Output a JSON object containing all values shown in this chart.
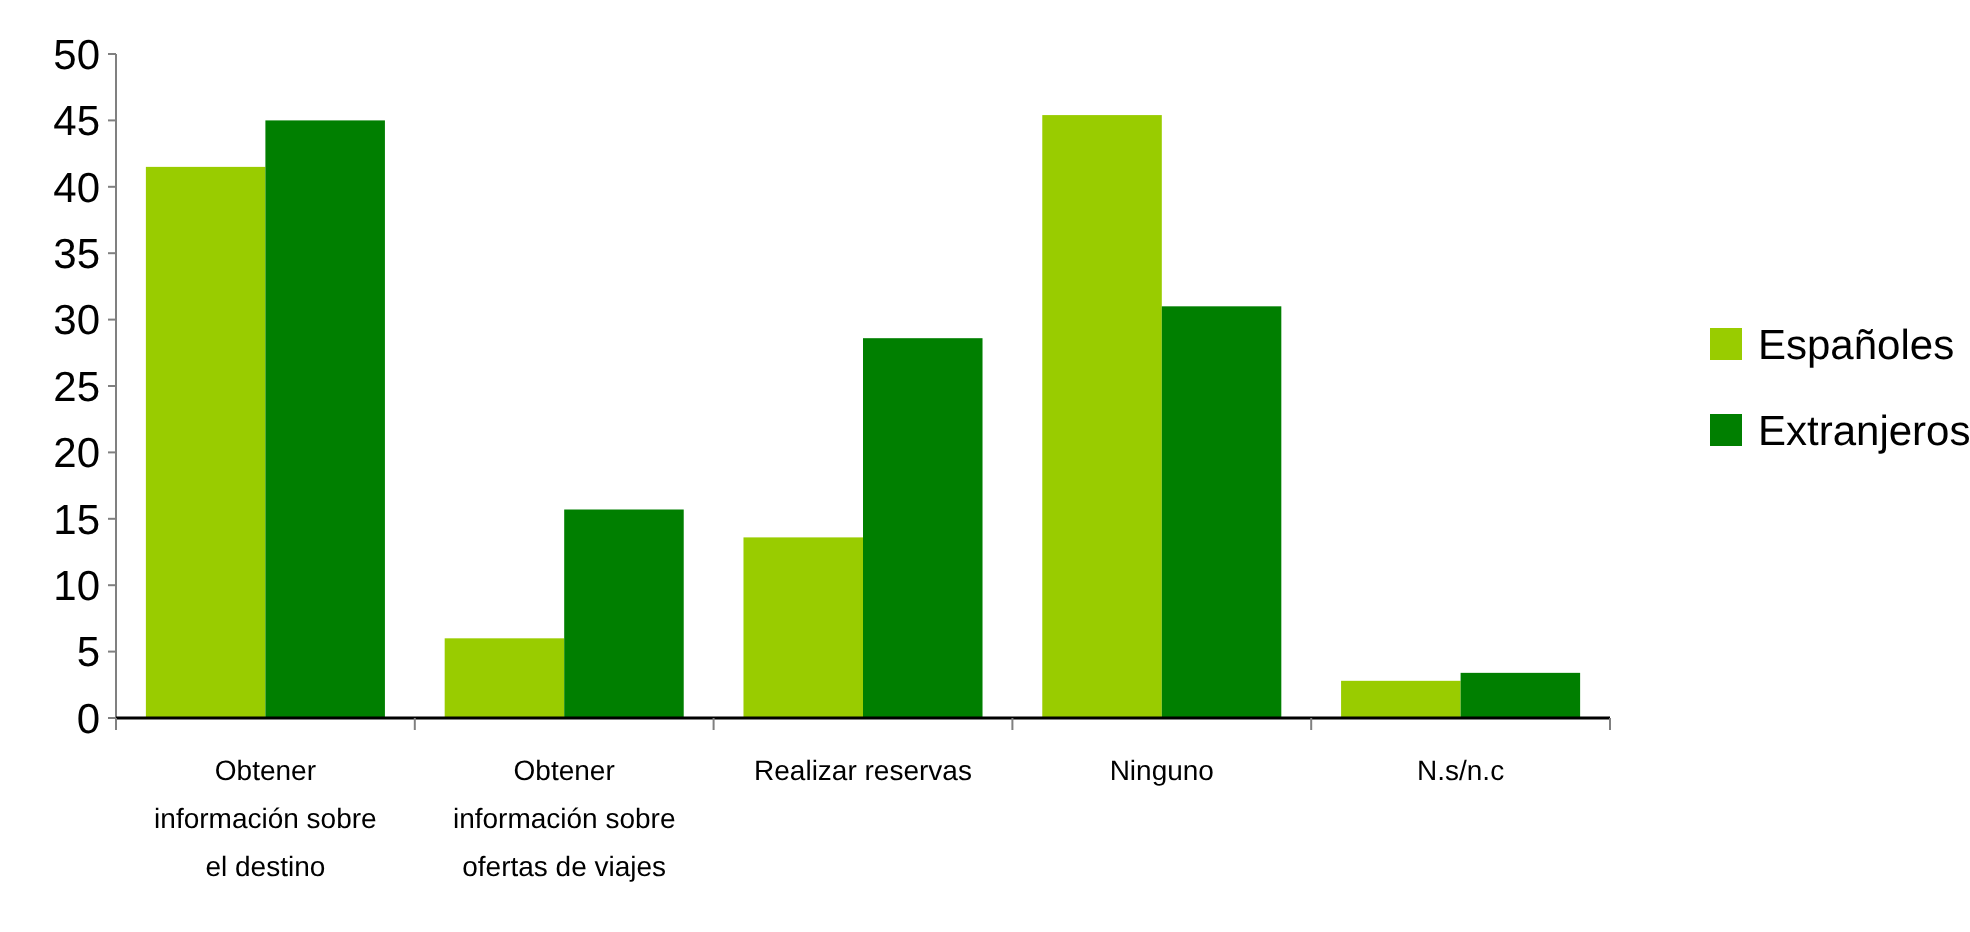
{
  "chart_data": {
    "type": "bar",
    "categories": [
      "Obtener información sobre el destino",
      "Obtener información sobre ofertas de viajes",
      "Realizar reservas",
      "Ninguno",
      "N.s/n.c"
    ],
    "series": [
      {
        "name": "Españoles",
        "color": "#99cc00",
        "values": [
          41.5,
          6,
          13.6,
          45.4,
          2.8
        ]
      },
      {
        "name": "Extranjeros",
        "color": "#007f00",
        "values": [
          45,
          15.7,
          28.6,
          31,
          3.4
        ]
      }
    ],
    "ylim": [
      0,
      50
    ],
    "yticks": [
      0,
      5,
      10,
      15,
      20,
      25,
      30,
      35,
      40,
      45,
      50
    ],
    "grid": false,
    "legend": "right"
  }
}
